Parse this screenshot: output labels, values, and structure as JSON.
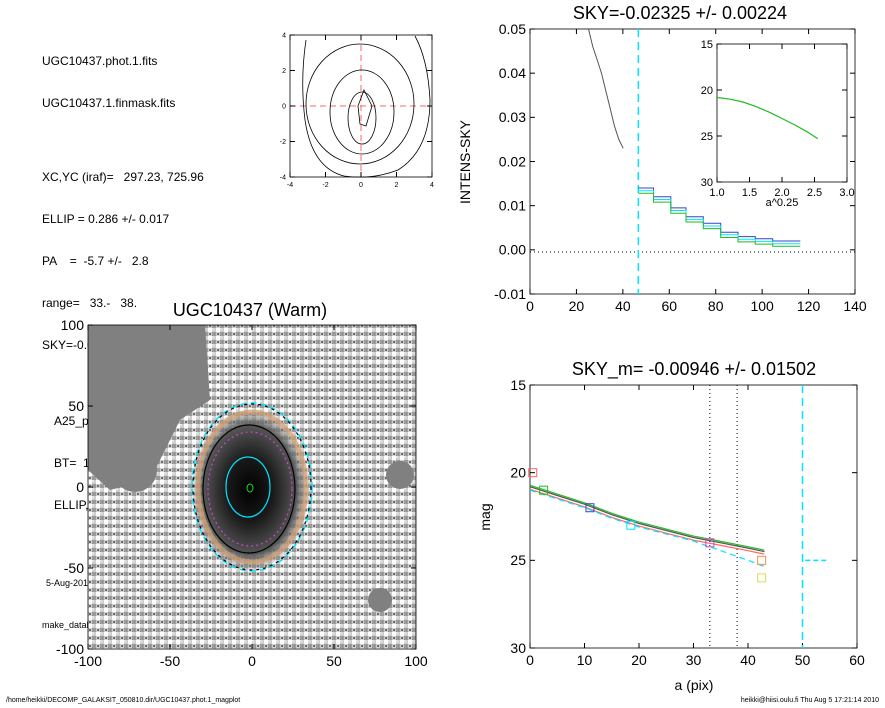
{
  "info": {
    "line1": "UGC10437.phot.1.fits",
    "line2": "UGC10437.1.finmask.fits",
    "line3": "XC,YC (iraf)=   297.23, 725.96",
    "line4": "ELLIP = 0.286 +/- 0.017",
    "line5": "PA    =  -5.7 +/-   2.8",
    "line6": "range=   33.-   38.",
    "line7": "SKY=-0.02325 +/- 0.00224",
    "line8": "A25_pix= 75.5   T= 5.8   R",
    "line9": "BT=  15.11   MABS=-18.13",
    "line10": "ELLIP, PA= 0.149   32.8",
    "date": "5-Aug-2010 17:21:14.00",
    "program": "make_datalist0.pro (version HS230610)"
  },
  "footer": {
    "left": "/home/heikki/DECOMP_GALAKSIT_050810.dir/UGC10437.phot.1_magplot",
    "right": "heikki@hiisi.oulu.fi  Thu Aug  5 17:21:14 2010"
  },
  "colors": {
    "axis": "#000000",
    "cyan": "#00e5ff",
    "red_dash": "#ff6666",
    "green": "#22bb22",
    "blue": "#3344cc",
    "magenta": "#cc44cc",
    "gray": "#555555"
  },
  "chart_data": [
    {
      "id": "contour",
      "type": "contour",
      "xlim": [
        -4,
        4
      ],
      "ylim": [
        -4,
        4
      ],
      "xticks": [
        "-4",
        "-2",
        "0",
        "2",
        "4"
      ],
      "yticks": [
        "4",
        "2",
        "0",
        "-2",
        "-4"
      ]
    },
    {
      "id": "sky_profile",
      "type": "line",
      "title": "SKY=-0.02325 +/- 0.00224",
      "ylabel": "INTENS-SKY",
      "xlim": [
        0,
        150
      ],
      "ylim": [
        -0.01,
        0.05
      ],
      "xticks": [
        "0",
        "20",
        "40",
        "60",
        "80",
        "100",
        "120",
        "140"
      ],
      "yticks": [
        "0.05",
        "0.04",
        "0.03",
        "0.02",
        "0.01",
        "0.00",
        "-0.01"
      ],
      "grid": false,
      "vline_x": 50,
      "inner_profile": {
        "x": [
          27,
          29,
          31,
          33,
          35,
          37,
          39,
          41,
          43
        ],
        "y": [
          0.05,
          0.046,
          0.043,
          0.04,
          0.036,
          0.032,
          0.028,
          0.025,
          0.023
        ]
      },
      "step_profile": {
        "x": [
          50,
          57,
          65,
          72,
          80,
          88,
          96,
          104,
          112,
          122
        ],
        "y": [
          0.014,
          0.012,
          0.0095,
          0.0075,
          0.006,
          0.004,
          0.003,
          0.0025,
          0.002,
          0.002
        ]
      },
      "inset": {
        "xlabel": "a^0.25",
        "xlim": [
          1.0,
          3.0
        ],
        "ylim": [
          15,
          30
        ],
        "xticks": [
          "1.0",
          "1.5",
          "2.0",
          "2.5",
          "3.0"
        ],
        "yticks": [
          "15",
          "20",
          "25",
          "30"
        ],
        "x": [
          1.0,
          1.2,
          1.4,
          1.6,
          1.8,
          2.0,
          2.2,
          2.4,
          2.55
        ],
        "y": [
          20.8,
          21.0,
          21.3,
          21.8,
          22.4,
          23.1,
          23.8,
          24.6,
          25.3
        ]
      }
    },
    {
      "id": "image",
      "type": "image",
      "title": "UGC10437 (Warm)",
      "xlim": [
        -100,
        100
      ],
      "ylim": [
        -100,
        100
      ],
      "xticks": [
        "-100",
        "-50",
        "0",
        "50",
        "100"
      ],
      "yticks": [
        "100",
        "50",
        "0",
        "-50",
        "-100"
      ]
    },
    {
      "id": "mag_profile",
      "type": "line",
      "title": "SKY_m= -0.00946 +/- 0.01502",
      "xlabel": "a (pix)",
      "ylabel": "mag",
      "xlim": [
        0,
        60
      ],
      "ylim": [
        15,
        30
      ],
      "xticks": [
        "0",
        "10",
        "20",
        "30",
        "40",
        "50",
        "60"
      ],
      "yticks": [
        "15",
        "20",
        "25",
        "30"
      ],
      "vlines_dotted": [
        33,
        38
      ],
      "vline_cyan": 50,
      "profile": {
        "x": [
          0,
          5,
          10,
          15,
          20,
          25,
          30,
          35,
          40,
          43
        ],
        "y": [
          20.8,
          21.3,
          21.8,
          22.4,
          22.9,
          23.3,
          23.7,
          24.0,
          24.3,
          24.5
        ]
      },
      "markers": [
        {
          "x": 0.5,
          "y": 20.0,
          "color": "#ff6666"
        },
        {
          "x": 2.5,
          "y": 21.0,
          "color": "#22bb22"
        },
        {
          "x": 11,
          "y": 22.0,
          "color": "#3344cc"
        },
        {
          "x": 18.5,
          "y": 23.0,
          "color": "#00e5ff"
        },
        {
          "x": 33,
          "y": 24.0,
          "color": "#cc44cc"
        },
        {
          "x": 42.5,
          "y": 25.0,
          "color": "#ff8844"
        },
        {
          "x": 42.5,
          "y": 26.0,
          "color": "#dddd55"
        }
      ]
    }
  ]
}
